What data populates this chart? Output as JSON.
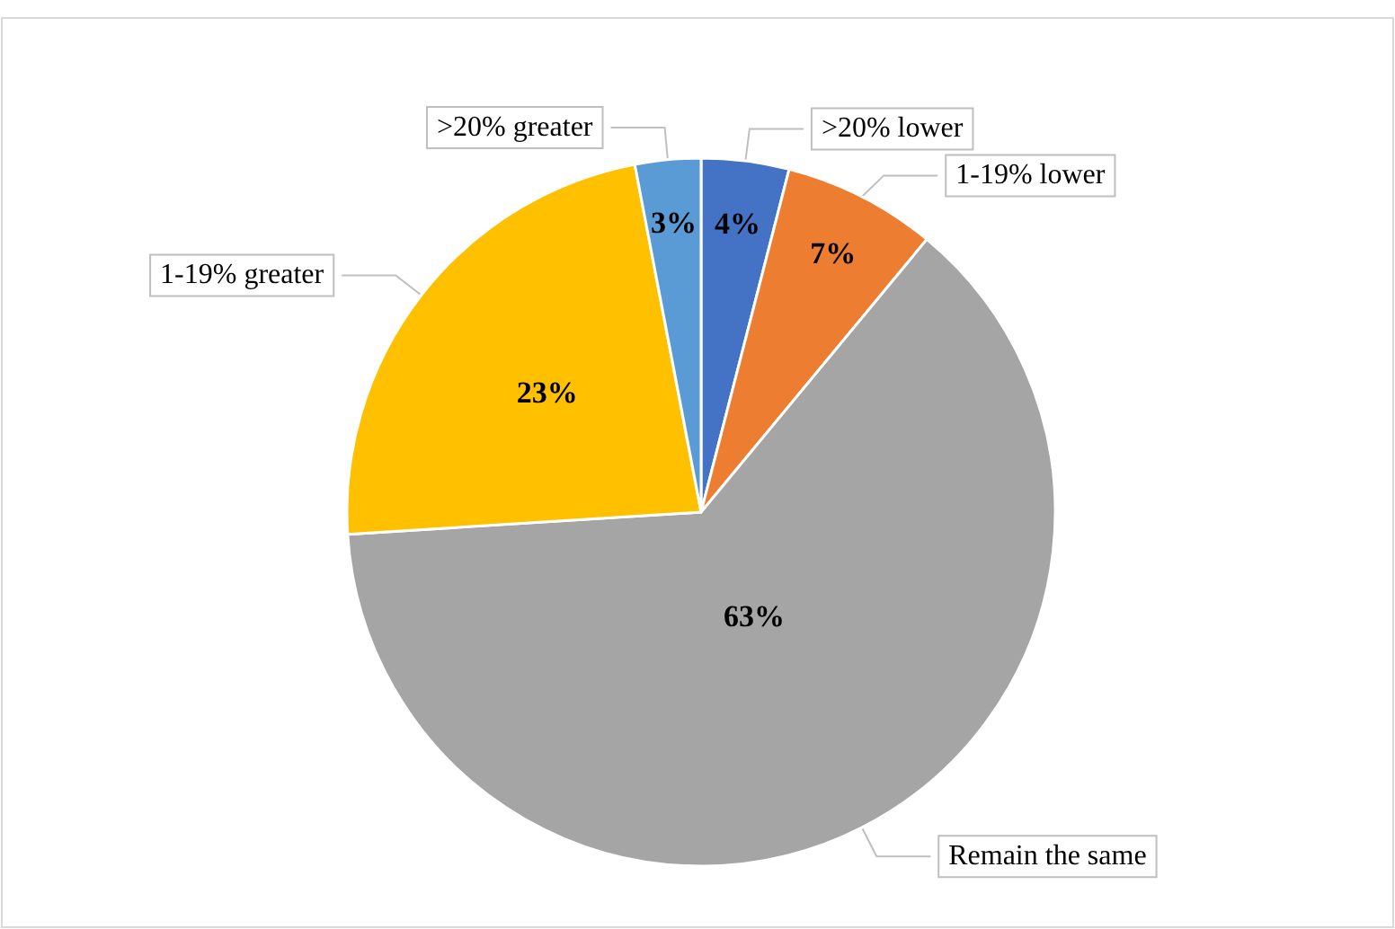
{
  "chart_data": {
    "type": "pie",
    "categories": [
      ">20% lower",
      "1-19% lower",
      "Remain the same",
      "1-19% greater",
      ">20% greater"
    ],
    "values": [
      4,
      7,
      63,
      23,
      3
    ],
    "colors": [
      "#4472c4",
      "#ed7d31",
      "#a5a5a5",
      "#ffc000",
      "#5b9bd5"
    ],
    "value_labels": [
      "4%",
      "7%",
      "63%",
      "23%",
      "3%"
    ],
    "legend": false
  }
}
